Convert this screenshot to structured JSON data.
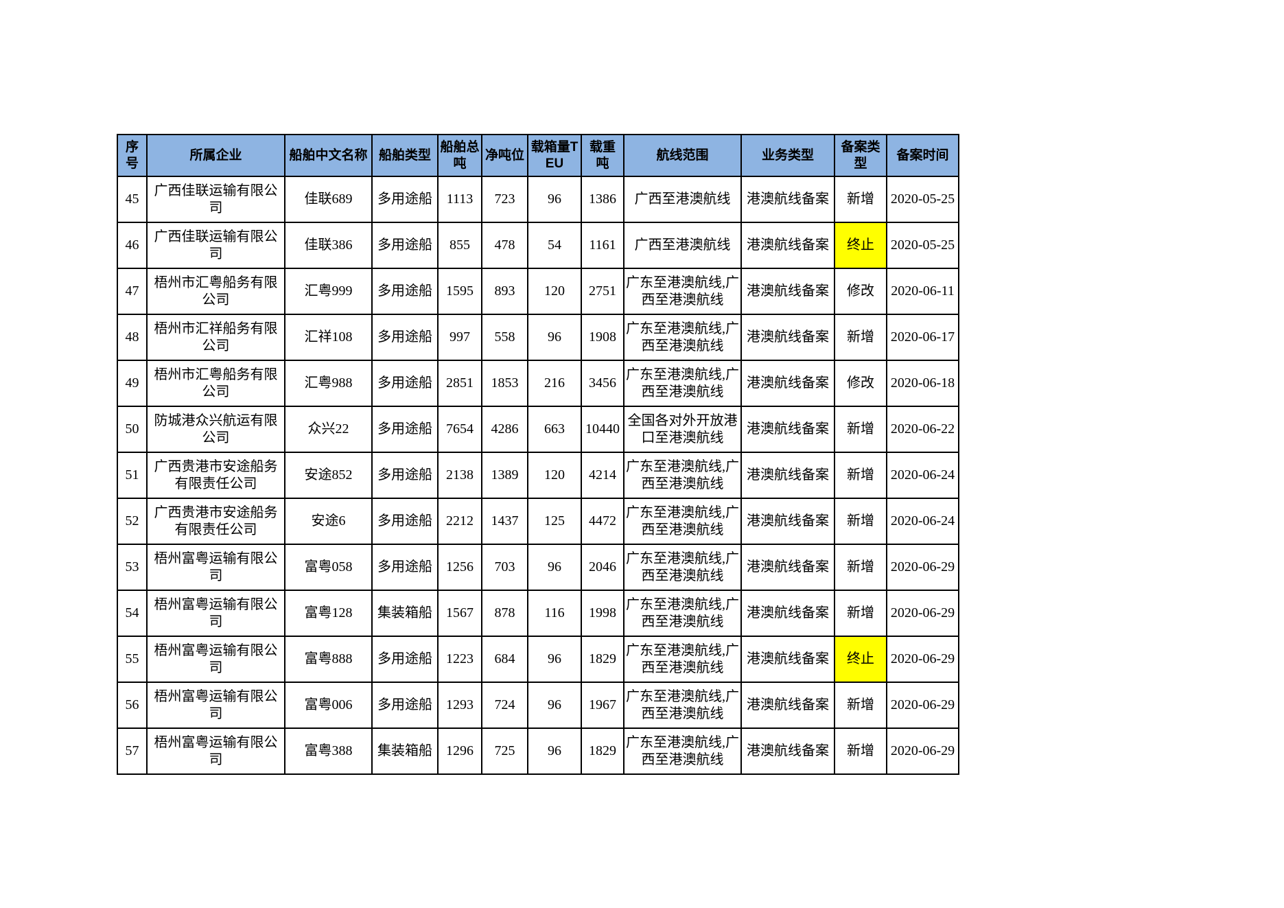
{
  "table": {
    "colors": {
      "header_bg": "#8EB4E2",
      "highlight_bg": "#FFFF00",
      "border": "#000000"
    },
    "columns": [
      {
        "key": "index",
        "label": "序号"
      },
      {
        "key": "company",
        "label": "所属企业"
      },
      {
        "key": "ship_name",
        "label": "船舶中文名称"
      },
      {
        "key": "ship_type",
        "label": "船舶类型"
      },
      {
        "key": "gross",
        "label": "船舶总吨"
      },
      {
        "key": "net",
        "label": "净吨位"
      },
      {
        "key": "teu",
        "label": "载箱量TEU"
      },
      {
        "key": "deadweight",
        "label": "载重吨"
      },
      {
        "key": "route",
        "label": "航线范围"
      },
      {
        "key": "business",
        "label": "业务类型"
      },
      {
        "key": "filing_type",
        "label": "备案类型"
      },
      {
        "key": "filing_date",
        "label": "备案时间"
      }
    ],
    "rows": [
      {
        "cells": [
          "45",
          "广西佳联运输有限公司",
          "佳联689",
          "多用途船",
          "1113",
          "723",
          "96",
          "1386",
          "广西至港澳航线",
          "港澳航线备案",
          "新增",
          "2020-05-25"
        ],
        "highlight_filing_type": false
      },
      {
        "cells": [
          "46",
          "广西佳联运输有限公司",
          "佳联386",
          "多用途船",
          "855",
          "478",
          "54",
          "1161",
          "广西至港澳航线",
          "港澳航线备案",
          "终止",
          "2020-05-25"
        ],
        "highlight_filing_type": true
      },
      {
        "cells": [
          "47",
          "梧州市汇粤船务有限公司",
          "汇粤999",
          "多用途船",
          "1595",
          "893",
          "120",
          "2751",
          "广东至港澳航线,广西至港澳航线",
          "港澳航线备案",
          "修改",
          "2020-06-11"
        ],
        "highlight_filing_type": false
      },
      {
        "cells": [
          "48",
          "梧州市汇祥船务有限公司",
          "汇祥108",
          "多用途船",
          "997",
          "558",
          "96",
          "1908",
          "广东至港澳航线,广西至港澳航线",
          "港澳航线备案",
          "新增",
          "2020-06-17"
        ],
        "highlight_filing_type": false
      },
      {
        "cells": [
          "49",
          "梧州市汇粤船务有限公司",
          "汇粤988",
          "多用途船",
          "2851",
          "1853",
          "216",
          "3456",
          "广东至港澳航线,广西至港澳航线",
          "港澳航线备案",
          "修改",
          "2020-06-18"
        ],
        "highlight_filing_type": false
      },
      {
        "cells": [
          "50",
          "防城港众兴航运有限公司",
          "众兴22",
          "多用途船",
          "7654",
          "4286",
          "663",
          "10440",
          "全国各对外开放港口至港澳航线",
          "港澳航线备案",
          "新增",
          "2020-06-22"
        ],
        "highlight_filing_type": false
      },
      {
        "cells": [
          "51",
          "广西贵港市安途船务有限责任公司",
          "安途852",
          "多用途船",
          "2138",
          "1389",
          "120",
          "4214",
          "广东至港澳航线,广西至港澳航线",
          "港澳航线备案",
          "新增",
          "2020-06-24"
        ],
        "highlight_filing_type": false
      },
      {
        "cells": [
          "52",
          "广西贵港市安途船务有限责任公司",
          "安途6",
          "多用途船",
          "2212",
          "1437",
          "125",
          "4472",
          "广东至港澳航线,广西至港澳航线",
          "港澳航线备案",
          "新增",
          "2020-06-24"
        ],
        "highlight_filing_type": false
      },
      {
        "cells": [
          "53",
          "梧州富粤运输有限公司",
          "富粤058",
          "多用途船",
          "1256",
          "703",
          "96",
          "2046",
          "广东至港澳航线,广西至港澳航线",
          "港澳航线备案",
          "新增",
          "2020-06-29"
        ],
        "highlight_filing_type": false
      },
      {
        "cells": [
          "54",
          "梧州富粤运输有限公司",
          "富粤128",
          "集装箱船",
          "1567",
          "878",
          "116",
          "1998",
          "广东至港澳航线,广西至港澳航线",
          "港澳航线备案",
          "新增",
          "2020-06-29"
        ],
        "highlight_filing_type": false
      },
      {
        "cells": [
          "55",
          "梧州富粤运输有限公司",
          "富粤888",
          "多用途船",
          "1223",
          "684",
          "96",
          "1829",
          "广东至港澳航线,广西至港澳航线",
          "港澳航线备案",
          "终止",
          "2020-06-29"
        ],
        "highlight_filing_type": true
      },
      {
        "cells": [
          "56",
          "梧州富粤运输有限公司",
          "富粤006",
          "多用途船",
          "1293",
          "724",
          "96",
          "1967",
          "广东至港澳航线,广西至港澳航线",
          "港澳航线备案",
          "新增",
          "2020-06-29"
        ],
        "highlight_filing_type": false
      },
      {
        "cells": [
          "57",
          "梧州富粤运输有限公司",
          "富粤388",
          "集装箱船",
          "1296",
          "725",
          "96",
          "1829",
          "广东至港澳航线,广西至港澳航线",
          "港澳航线备案",
          "新增",
          "2020-06-29"
        ],
        "highlight_filing_type": false
      }
    ]
  }
}
